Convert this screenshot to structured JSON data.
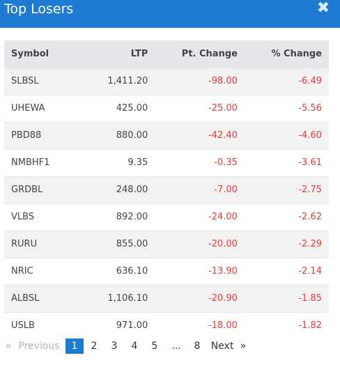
{
  "header": {
    "title": "Top Losers",
    "close_label": "✖"
  },
  "table": {
    "columns": [
      "Symbol",
      "LTP",
      "Pt. Change",
      "% Change"
    ],
    "rows": [
      [
        "SLBSL",
        "1,411.20",
        "-98.00",
        "-6.49"
      ],
      [
        "UHEWA",
        "425.00",
        "-25.00",
        "-5.56"
      ],
      [
        "PBD88",
        "880.00",
        "-42.40",
        "-4.60"
      ],
      [
        "NMBHF1",
        "9.35",
        "-0.35",
        "-3.61"
      ],
      [
        "GRDBL",
        "248.00",
        "-7.00",
        "-2.75"
      ],
      [
        "VLBS",
        "892.00",
        "-24.00",
        "-2.62"
      ],
      [
        "RURU",
        "855.00",
        "-20.00",
        "-2.29"
      ],
      [
        "NRIC",
        "636.10",
        "-13.90",
        "-2.14"
      ],
      [
        "ALBSL",
        "1,106.10",
        "-20.90",
        "-1.85"
      ],
      [
        "USLB",
        "971.00",
        "-18.00",
        "-1.82"
      ]
    ]
  },
  "pagination": {
    "prev_arrow": "«",
    "prev_label": "Previous",
    "pages": [
      "1",
      "2",
      "3",
      "4",
      "5",
      "...",
      "8"
    ],
    "active_page": "1",
    "next_label": "Next",
    "next_arrow": "»"
  },
  "colors": {
    "accent": "#1f7bd2",
    "negative": "#e63a3a"
  }
}
